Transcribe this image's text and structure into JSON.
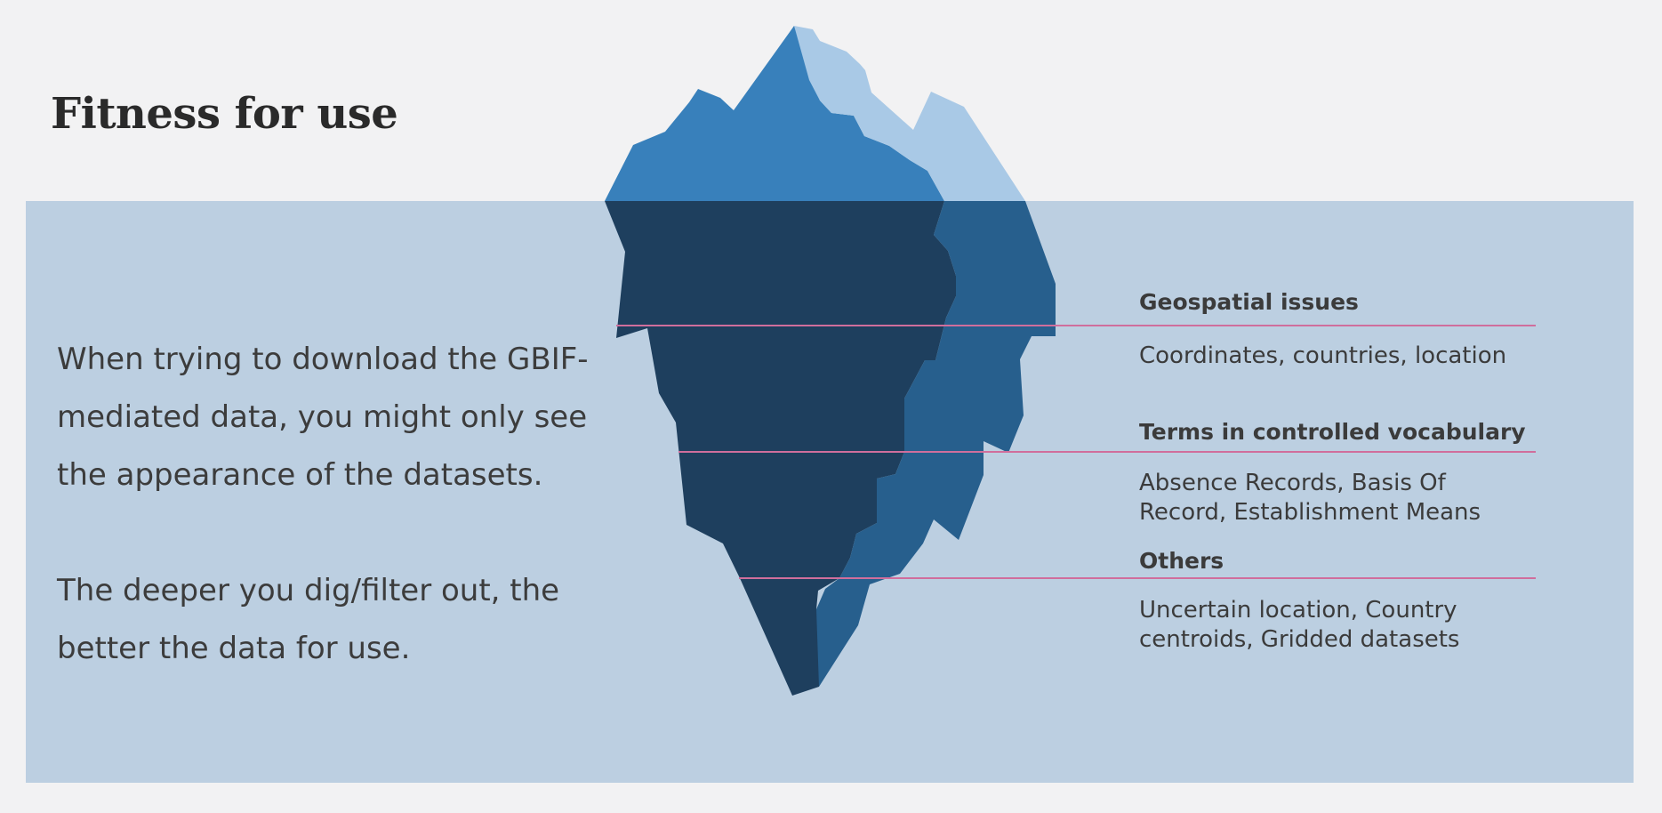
{
  "title": "Fitness for use",
  "intro": {
    "paragraph1": "When trying to download the GBIF-mediated data, you might only see the appearance of the datasets.",
    "paragraph2": "The deeper you dig/filter out, the better the data for use."
  },
  "layers": [
    {
      "title": "Geospatial issues",
      "description": "Coordinates, countries, location"
    },
    {
      "title": "Terms in controlled vocabulary",
      "description": "Absence Records, Basis Of Record, Establishment Means"
    },
    {
      "title": "Others",
      "description": "Uncertain location, Country centroids, Gridded datasets"
    }
  ],
  "colors": {
    "background": "#f2f2f3",
    "water": "#bccfe1",
    "ice_tip_dark": "#3880bb",
    "ice_tip_light": "#a9c9e6",
    "ice_deep": "#1e3f5e",
    "ice_deep_side": "#275f8d",
    "divider": "#d06e9c"
  }
}
